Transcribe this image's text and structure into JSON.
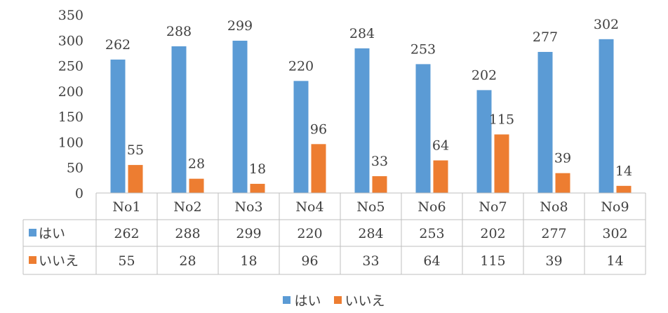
{
  "chart_data": {
    "type": "bar",
    "title": "",
    "xlabel": "",
    "ylabel": "",
    "ylim": [
      0,
      350
    ],
    "y_ticks": [
      0,
      50,
      100,
      150,
      200,
      250,
      300,
      350
    ],
    "grid": false,
    "legend_position": "bottom",
    "data_table": true,
    "categories": [
      "No1",
      "No2",
      "No3",
      "No4",
      "No5",
      "No6",
      "No7",
      "No8",
      "No9"
    ],
    "series": [
      {
        "name": "はい",
        "color": "#5B9BD5",
        "values": [
          262,
          288,
          299,
          220,
          284,
          253,
          202,
          277,
          302
        ]
      },
      {
        "name": "いいえ",
        "color": "#ED7D31",
        "values": [
          55,
          28,
          18,
          96,
          33,
          64,
          115,
          39,
          14
        ]
      }
    ]
  }
}
